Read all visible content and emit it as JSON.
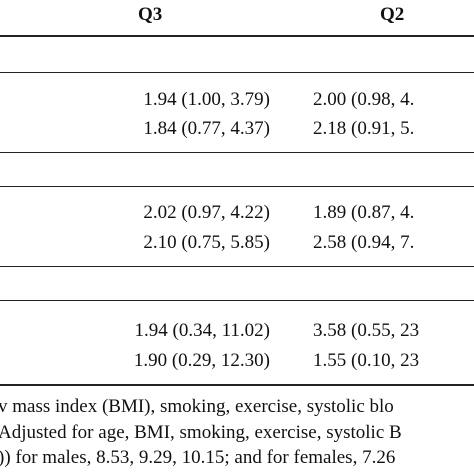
{
  "table": {
    "header": [
      "Q3",
      "Q2"
    ],
    "rows": [
      [
        "1.94 (1.00, 3.79)",
        "2.00 (0.98, 4."
      ],
      [
        "1.84 (0.77, 4.37)",
        "2.18 (0.91, 5."
      ],
      [
        "2.02 (0.97, 4.22)",
        "1.89 (0.87, 4."
      ],
      [
        "2.10 (0.75, 5.85)",
        "2.58 (0.94, 7."
      ],
      [
        "1.94 (0.34, 11.02)",
        "3.58 (0.55, 23"
      ],
      [
        "1.90 (0.29, 12.30)",
        "1.55 (0.10, 23"
      ]
    ]
  },
  "footnotes": [
    "v mass index (BMI), smoking, exercise, systolic blo",
    "Adjusted for age, BMI, smoking, exercise, systolic B",
    ")) for males, 8.53, 9.29, 10.15; and for females, 7.26"
  ]
}
